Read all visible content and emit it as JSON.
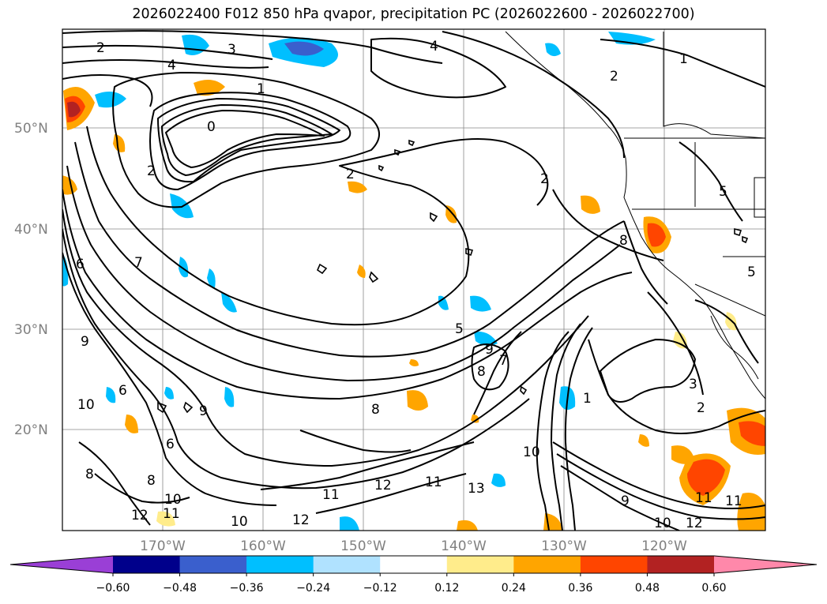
{
  "title": "2026022400 F012 850 hPa qvapor, precipitation PC (2026022600 - 2026022700)",
  "map": {
    "lat_labels": [
      "50°N",
      "40°N",
      "30°N",
      "20°N"
    ],
    "lon_labels": [
      "170°W",
      "160°W",
      "150°W",
      "140°W",
      "130°W",
      "120°W"
    ]
  },
  "contour_labels": [
    {
      "text": "2"
    },
    {
      "text": "3"
    },
    {
      "text": "4"
    },
    {
      "text": "4"
    },
    {
      "text": "1"
    },
    {
      "text": "2"
    },
    {
      "text": "1"
    },
    {
      "text": "0"
    },
    {
      "text": "2"
    },
    {
      "text": "2"
    },
    {
      "text": "2"
    },
    {
      "text": "5"
    },
    {
      "text": "8"
    },
    {
      "text": "6"
    },
    {
      "text": "5"
    },
    {
      "text": "9"
    },
    {
      "text": "7"
    },
    {
      "text": "8"
    },
    {
      "text": "7"
    },
    {
      "text": "9"
    },
    {
      "text": "10"
    },
    {
      "text": "6"
    },
    {
      "text": "8"
    },
    {
      "text": "9"
    },
    {
      "text": "6"
    },
    {
      "text": "8"
    },
    {
      "text": "10"
    },
    {
      "text": "11"
    },
    {
      "text": "12"
    },
    {
      "text": "10"
    },
    {
      "text": "12"
    },
    {
      "text": "11"
    },
    {
      "text": "12"
    },
    {
      "text": "11"
    },
    {
      "text": "13"
    },
    {
      "text": "10"
    },
    {
      "text": "9"
    },
    {
      "text": "11"
    },
    {
      "text": "11"
    },
    {
      "text": "10"
    },
    {
      "text": "3"
    },
    {
      "text": "2"
    },
    {
      "text": "1"
    },
    {
      "text": "5"
    },
    {
      "text": "8"
    },
    {
      "text": "12"
    }
  ],
  "colorbar": {
    "ticks": [
      "−0.60",
      "−0.48",
      "−0.36",
      "−0.24",
      "−0.12",
      "0.12",
      "0.24",
      "0.36",
      "0.48",
      "0.60"
    ],
    "colors": [
      "#9a3fd6",
      "#00008b",
      "#3a5fcd",
      "#00bfff",
      "#b0e2ff",
      "#ffffff",
      "#ffec8b",
      "#ffa500",
      "#ff4500",
      "#b22222",
      "#ff88aa"
    ]
  }
}
